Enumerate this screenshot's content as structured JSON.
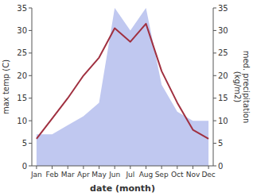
{
  "chart_data": {
    "type": "line",
    "x_label": "date (month)",
    "y_label": "max temp (C)",
    "y2_label": "med. precipitation\n(kg/m2)",
    "categories": [
      "Jan",
      "Feb",
      "Mar",
      "Apr",
      "May",
      "Jun",
      "Jul",
      "Aug",
      "Sep",
      "Oct",
      "Nov",
      "Dec"
    ],
    "series": [
      {
        "type": "area",
        "axis": "y2",
        "color": "#c0c8f0",
        "values": [
          7,
          7,
          9,
          11,
          14,
          35,
          30,
          35,
          18,
          12,
          10,
          10
        ]
      },
      {
        "type": "line",
        "color": "#a03040",
        "values": [
          6,
          10.5,
          15,
          20,
          24,
          30.5,
          27.5,
          31.5,
          21,
          14,
          8,
          6
        ]
      }
    ],
    "ylim": [
      0,
      35
    ],
    "yticks": [
      0,
      5,
      10,
      15,
      20,
      25,
      30,
      35
    ],
    "y2lim": [
      0,
      35
    ],
    "y2ticks": [
      0,
      5,
      10,
      15,
      20,
      25,
      30,
      35
    ],
    "grid": false
  }
}
